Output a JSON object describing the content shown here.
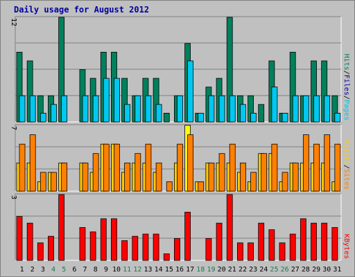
{
  "title": "Daily usage for August 2012",
  "colors": {
    "background": "#c0c0c0",
    "plot_bg": "#c0c0c0",
    "grid": "#808080",
    "title": "#0000a0",
    "tick_text": "#000000",
    "weekend_text": "#1e7850",
    "hits": "#00805c",
    "files": "#00c8f0",
    "pages": "#00c8f0",
    "visits": "#ff8000",
    "sites": "#ffcc00",
    "visits_max": "#ffff00",
    "kbytes": "#ff0000"
  },
  "chart_data": [
    {
      "type": "bar",
      "panel": "pages-files-hits",
      "ymax_label": "12",
      "ylim": [
        0,
        12
      ],
      "categories": [
        "1",
        "2",
        "3",
        "4",
        "5",
        "6",
        "7",
        "8",
        "9",
        "10",
        "11",
        "12",
        "13",
        "14",
        "15",
        "16",
        "17",
        "18",
        "19",
        "20",
        "21",
        "22",
        "23",
        "24",
        "25",
        "26",
        "27",
        "28",
        "29",
        "30",
        "31"
      ],
      "legend": [
        {
          "text": "Pages",
          "color": "#00c8f0"
        },
        {
          "text": "Files",
          "color": "#0000a0"
        },
        {
          "text": "Hits",
          "color": "#00805c"
        }
      ],
      "separator": "/",
      "series": [
        {
          "name": "Hits",
          "color": "#00805c",
          "values": [
            8,
            7,
            3,
            3,
            12,
            0,
            6,
            5,
            8,
            8,
            5,
            3,
            5,
            5,
            1,
            3,
            9,
            1,
            4,
            5,
            12,
            3,
            3,
            2,
            7,
            1,
            8,
            3,
            7,
            7,
            3
          ]
        },
        {
          "name": "Files",
          "color": "#00c8f0",
          "values": [
            3,
            3,
            1,
            2,
            3,
            0,
            3,
            3,
            5,
            5,
            2,
            3,
            3,
            2,
            0,
            3,
            7,
            1,
            3,
            3,
            3,
            2,
            1,
            0,
            4,
            1,
            3,
            3,
            3,
            3,
            1
          ]
        }
      ]
    },
    {
      "type": "bar",
      "panel": "sites-visits",
      "ymax_label": "7",
      "ylim": [
        0,
        7
      ],
      "categories": [
        "1",
        "2",
        "3",
        "4",
        "5",
        "6",
        "7",
        "8",
        "9",
        "10",
        "11",
        "12",
        "13",
        "14",
        "15",
        "16",
        "17",
        "18",
        "19",
        "20",
        "21",
        "22",
        "23",
        "24",
        "25",
        "26",
        "27",
        "28",
        "29",
        "30",
        "31"
      ],
      "legend": [
        {
          "text": "Sites",
          "color": "#ff8000"
        },
        {
          "text": "Visits",
          "color": "#ffcc00"
        }
      ],
      "separator": "/",
      "series": [
        {
          "name": "Sites",
          "color": "#ffcc00",
          "values": [
            3,
            3,
            1,
            2,
            3,
            0,
            3,
            2,
            5,
            5,
            2,
            3,
            3,
            2,
            0,
            3,
            7,
            1,
            3,
            3,
            3,
            2,
            1,
            4,
            4,
            1,
            3,
            3,
            3,
            3,
            1
          ]
        },
        {
          "name": "Visits",
          "color": "#ff8000",
          "values": [
            5,
            6,
            2,
            2,
            3,
            0,
            3,
            4,
            5,
            5,
            3,
            4,
            5,
            3,
            1,
            5,
            6,
            1,
            3,
            4,
            5,
            3,
            2,
            4,
            5,
            2,
            3,
            6,
            5,
            6,
            5
          ]
        }
      ]
    },
    {
      "type": "bar",
      "panel": "kbytes",
      "ymax_label": "3",
      "ylim": [
        0,
        3
      ],
      "categories": [
        "1",
        "2",
        "3",
        "4",
        "5",
        "6",
        "7",
        "8",
        "9",
        "10",
        "11",
        "12",
        "13",
        "14",
        "15",
        "16",
        "17",
        "18",
        "19",
        "20",
        "21",
        "22",
        "23",
        "24",
        "25",
        "26",
        "27",
        "28",
        "29",
        "30",
        "31"
      ],
      "legend": [
        {
          "text": "KBytes",
          "color": "#ff0000"
        }
      ],
      "series": [
        {
          "name": "KBytes",
          "color": "#ff0000",
          "values": [
            2.0,
            1.7,
            0.8,
            1.1,
            3.0,
            0,
            1.5,
            1.3,
            1.9,
            1.9,
            0.9,
            1.1,
            1.2,
            1.2,
            0.3,
            1.0,
            2.2,
            0,
            1.0,
            1.7,
            3.0,
            0.8,
            0.8,
            1.7,
            1.4,
            0.8,
            1.2,
            1.9,
            1.7,
            1.7,
            1.5
          ]
        }
      ]
    }
  ],
  "weekend_days": [
    4,
    5,
    11,
    12,
    18,
    19,
    25,
    26
  ]
}
